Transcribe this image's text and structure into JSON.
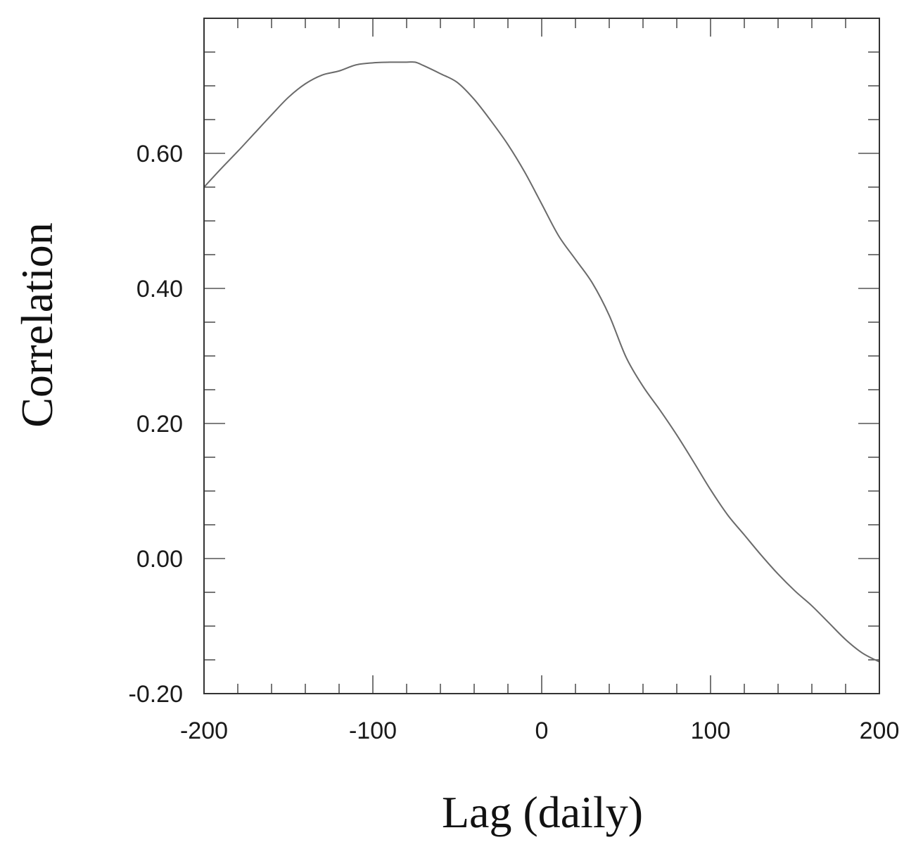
{
  "chart_data": {
    "type": "line",
    "xlabel": "Lag (daily)",
    "ylabel": "Correlation",
    "xlim": [
      -200,
      200
    ],
    "ylim": [
      -0.2,
      0.8
    ],
    "x_ticks": [
      -200,
      -100,
      0,
      100,
      200
    ],
    "x_tick_labels": [
      "-200",
      "-100",
      "0",
      "100",
      "200"
    ],
    "x_minor_step": 20,
    "y_ticks": [
      -0.2,
      0.0,
      0.2,
      0.4,
      0.6
    ],
    "y_tick_labels": [
      "-0.20",
      "0.00",
      "0.20",
      "0.40",
      "0.60"
    ],
    "y_minor_step": 0.05,
    "grid": false,
    "series": [
      {
        "color": "#6a6a6a",
        "x": [
          -200,
          -190,
          -180,
          -170,
          -160,
          -150,
          -140,
          -130,
          -120,
          -110,
          -100,
          -90,
          -80,
          -75,
          -70,
          -60,
          -50,
          -40,
          -30,
          -20,
          -10,
          0,
          10,
          20,
          30,
          40,
          50,
          60,
          70,
          80,
          90,
          100,
          110,
          120,
          130,
          140,
          150,
          160,
          170,
          180,
          190,
          200
        ],
        "y": [
          0.55,
          0.577,
          0.603,
          0.63,
          0.657,
          0.683,
          0.703,
          0.716,
          0.722,
          0.731,
          0.734,
          0.735,
          0.735,
          0.735,
          0.73,
          0.718,
          0.705,
          0.68,
          0.648,
          0.613,
          0.572,
          0.525,
          0.478,
          0.443,
          0.408,
          0.36,
          0.298,
          0.255,
          0.22,
          0.183,
          0.143,
          0.102,
          0.065,
          0.035,
          0.005,
          -0.023,
          -0.048,
          -0.07,
          -0.095,
          -0.12,
          -0.14,
          -0.153
        ]
      }
    ]
  }
}
